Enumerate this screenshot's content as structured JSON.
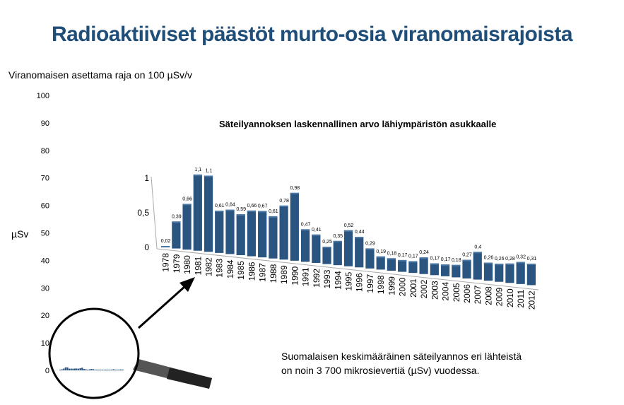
{
  "title": "Radioaktiiviset päästöt murto-osia viranomaisrajoista",
  "subtitle": "Viranomaisen asettama raja on 100 µSv/v",
  "note_line1": "Suomalaisen keskimääräinen säteilyannos eri lähteistä",
  "note_line2": "on noin 3 700 mikrosievertiä (µSv) vuodessa.",
  "chart_data": [
    {
      "type": "bar",
      "title": "",
      "ylabel": "µSv",
      "ylim": [
        0,
        100
      ],
      "yticks": [
        0,
        10,
        20,
        30,
        40,
        50,
        60,
        70,
        80,
        90,
        100
      ],
      "note": "same series shown at full limit scale (magnified)"
    },
    {
      "type": "bar",
      "title": "Säteilyannoksen laskennallinen arvo lähiympäristön asukkaalle",
      "ylim": [
        0,
        1
      ],
      "yticks": [
        "0",
        "0,5",
        "1"
      ],
      "categories": [
        "1978",
        "1979",
        "1980",
        "1981",
        "1982",
        "1983",
        "1984",
        "1985",
        "1986",
        "1987",
        "1988",
        "1989",
        "1990",
        "1991",
        "1992",
        "1993",
        "1994",
        "1995",
        "1996",
        "1997",
        "1998",
        "1999",
        "2000",
        "2001",
        "2002",
        "2003",
        "2004",
        "2005",
        "2006",
        "2007",
        "2008",
        "2009",
        "2010",
        "2011",
        "2012"
      ],
      "values": [
        0.02,
        0.39,
        0.66,
        1.1,
        1.1,
        0.61,
        0.64,
        0.59,
        0.66,
        0.67,
        0.61,
        0.78,
        0.98,
        0.47,
        0.41,
        0.25,
        0.35,
        0.52,
        0.44,
        0.29,
        0.19,
        0.18,
        0.17,
        0.17,
        0.24,
        0.17,
        0.17,
        0.18,
        0.27,
        0.4,
        0.26,
        0.26,
        0.28,
        0.32,
        0.31
      ],
      "labels": [
        "0,02",
        "0,39",
        "0,66",
        "1,1",
        "1,1",
        "0,61",
        "0,64",
        "0,59",
        "0,66",
        "0,67",
        "0,61",
        "0,78",
        "0,98",
        "0,47",
        "0,41",
        "0,25",
        "0,35",
        "0,52",
        "0,44",
        "0,29",
        "0,19",
        "0,18",
        "0,17",
        "0,17",
        "0,24",
        "0,17",
        "0,17",
        "0,18",
        "0,27",
        "0,4",
        "0,26",
        "0,26",
        "0,28",
        "0,32",
        "0,31"
      ],
      "color": "#2a5580"
    }
  ]
}
